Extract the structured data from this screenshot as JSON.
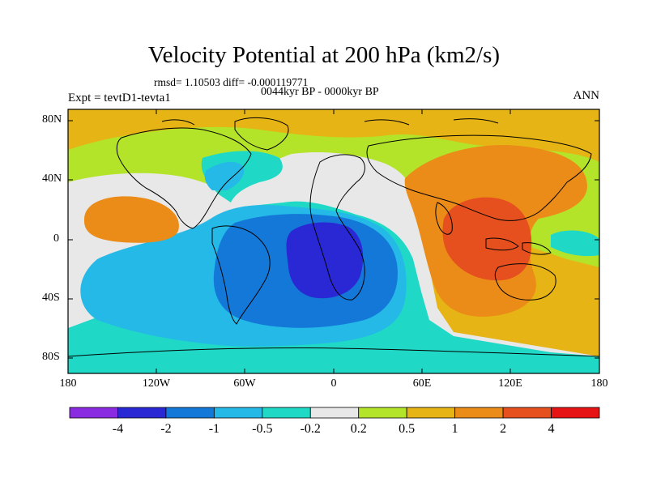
{
  "title": "Velocity Potential at 200 hPa (km2/s)",
  "stats_line": "rmsd= 1.10503 diff= -0.000119771",
  "period_line": "0044kyr BP - 0000kyr BP",
  "experiment_label": "Expt = tevtD1-tevta1",
  "season_label": "ANN",
  "lat_labels": [
    "80N",
    "40N",
    "0",
    "40S",
    "80S"
  ],
  "lon_labels": [
    "180",
    "120W",
    "60W",
    "0",
    "60E",
    "120E",
    "180"
  ],
  "colorbar": {
    "labels": [
      "-4",
      "-2",
      "-1",
      "-0.5",
      "-0.2",
      "0.2",
      "0.5",
      "1",
      "2",
      "4"
    ],
    "colors": [
      "#8a2be2",
      "#2a28d4",
      "#1478d8",
      "#25b9e8",
      "#1fd8c6",
      "#e8e8e8",
      "#b4e42a",
      "#e6b414",
      "#eb8c18",
      "#e6501e",
      "#e61414"
    ]
  },
  "map_colors": {
    "strong_negative": "#2a28d4",
    "negative": "#1478d8",
    "weak_negative": "#25b9e8",
    "slight_negative": "#1fd8c6",
    "near_zero": "#e8e8e8",
    "slight_positive": "#b4e42a",
    "weak_positive": "#e6b414",
    "positive": "#eb8c18",
    "strong_positive": "#e6501e"
  }
}
